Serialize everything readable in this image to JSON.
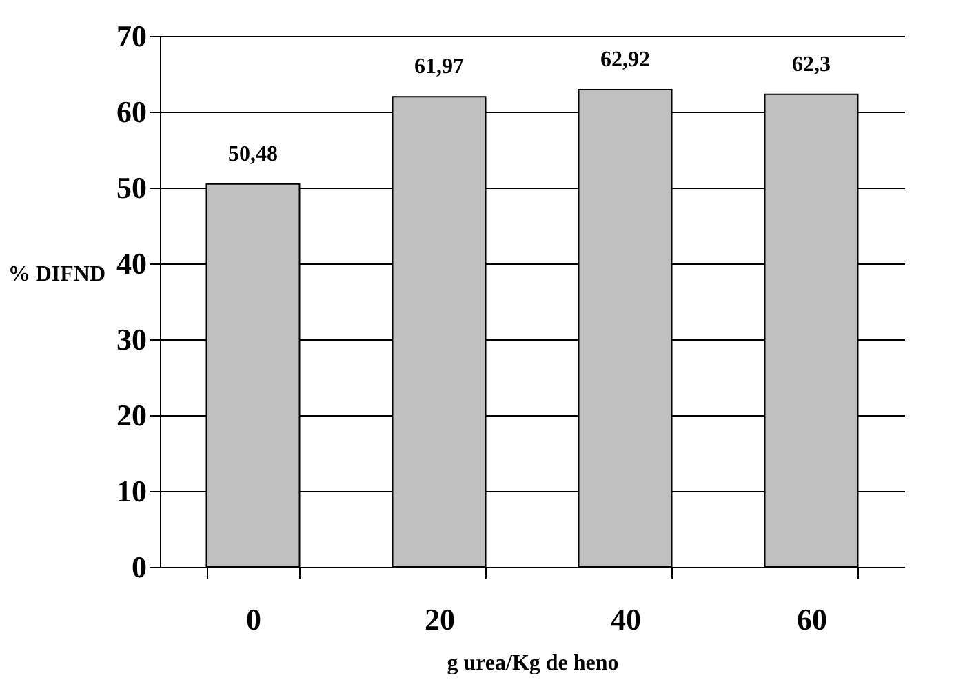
{
  "chart_data": {
    "type": "bar",
    "xlabel": "g urea/Kg de heno",
    "ylabel": "% DIFND",
    "categories": [
      "0",
      "20",
      "40",
      "60"
    ],
    "values": [
      50.48,
      61.97,
      62.92,
      62.3
    ],
    "value_labels": [
      "50,48",
      "61,97",
      "62,92",
      "62,3"
    ],
    "color": "#c0c0c0",
    "ylim": [
      0,
      70
    ],
    "yticks": [
      0,
      10,
      20,
      30,
      40,
      50,
      60,
      70
    ],
    "grid": "y"
  }
}
